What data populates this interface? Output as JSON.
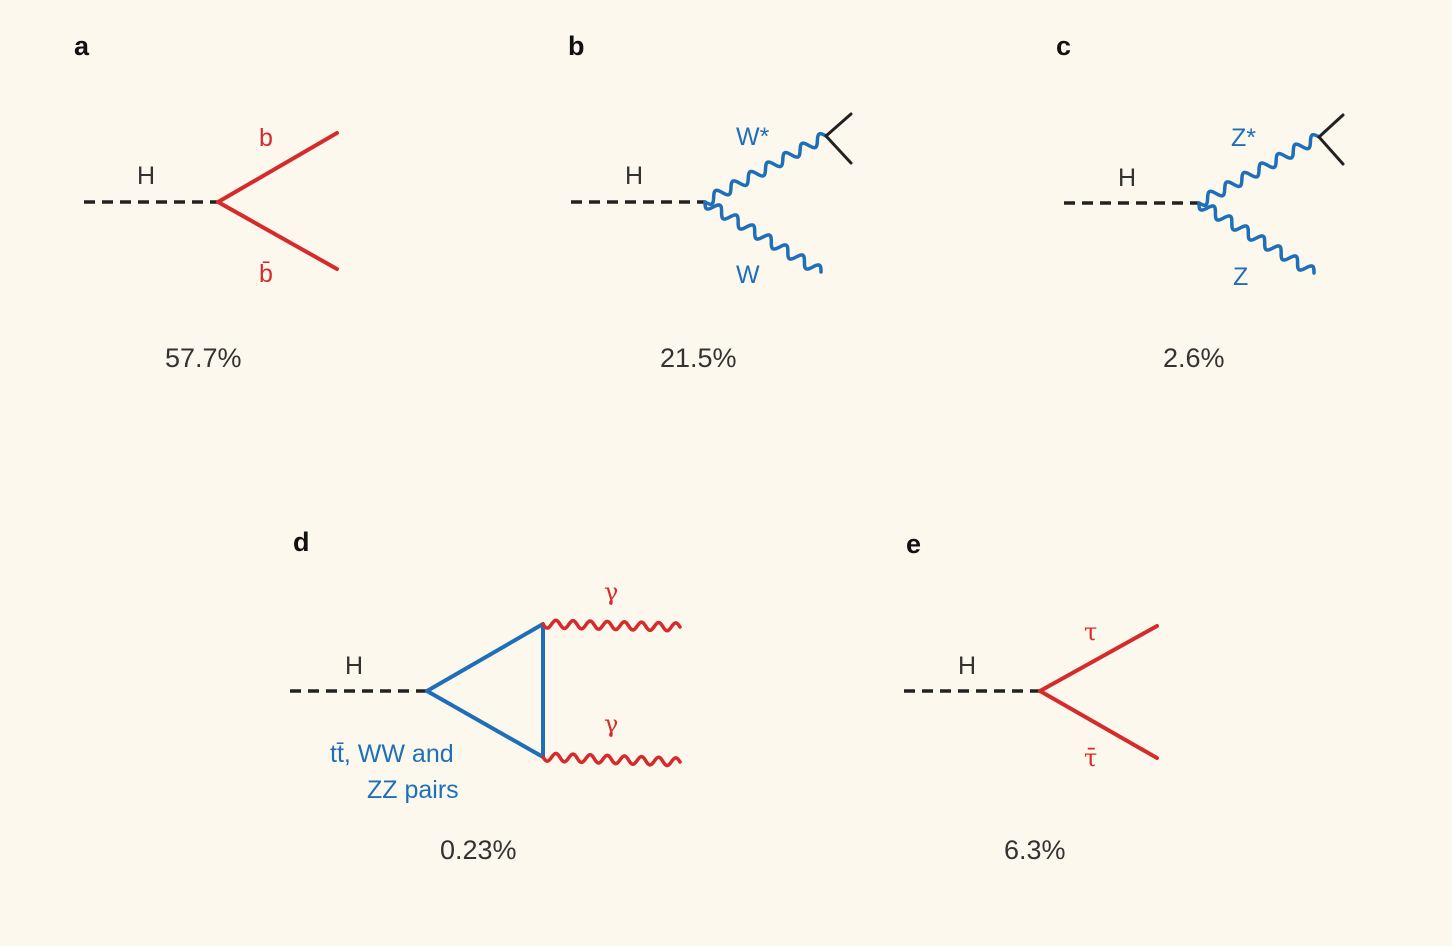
{
  "colors": {
    "background": "#fdf8ee",
    "fermion": "#d52b2b",
    "boson": "#1f6fb8",
    "higgs": "#222222",
    "text": "#333333"
  },
  "panels": [
    {
      "letter": "a",
      "higgs_label": "H",
      "top_label": "b",
      "bottom_label": "b̄",
      "percent": "57.7%"
    },
    {
      "letter": "b",
      "higgs_label": "H",
      "top_label": "W*",
      "bottom_label": "W",
      "percent": "21.5%"
    },
    {
      "letter": "c",
      "higgs_label": "H",
      "top_label": "Z*",
      "bottom_label": "Z",
      "percent": "2.6%"
    },
    {
      "letter": "d",
      "higgs_label": "H",
      "top_label": "γ",
      "bottom_label": "γ",
      "loop_label_line1": "tt̄, WW and",
      "loop_label_line2": "ZZ pairs",
      "percent": "0.23%"
    },
    {
      "letter": "e",
      "higgs_label": "H",
      "top_label": "τ",
      "bottom_label": "τ̄",
      "percent": "6.3%"
    }
  ]
}
